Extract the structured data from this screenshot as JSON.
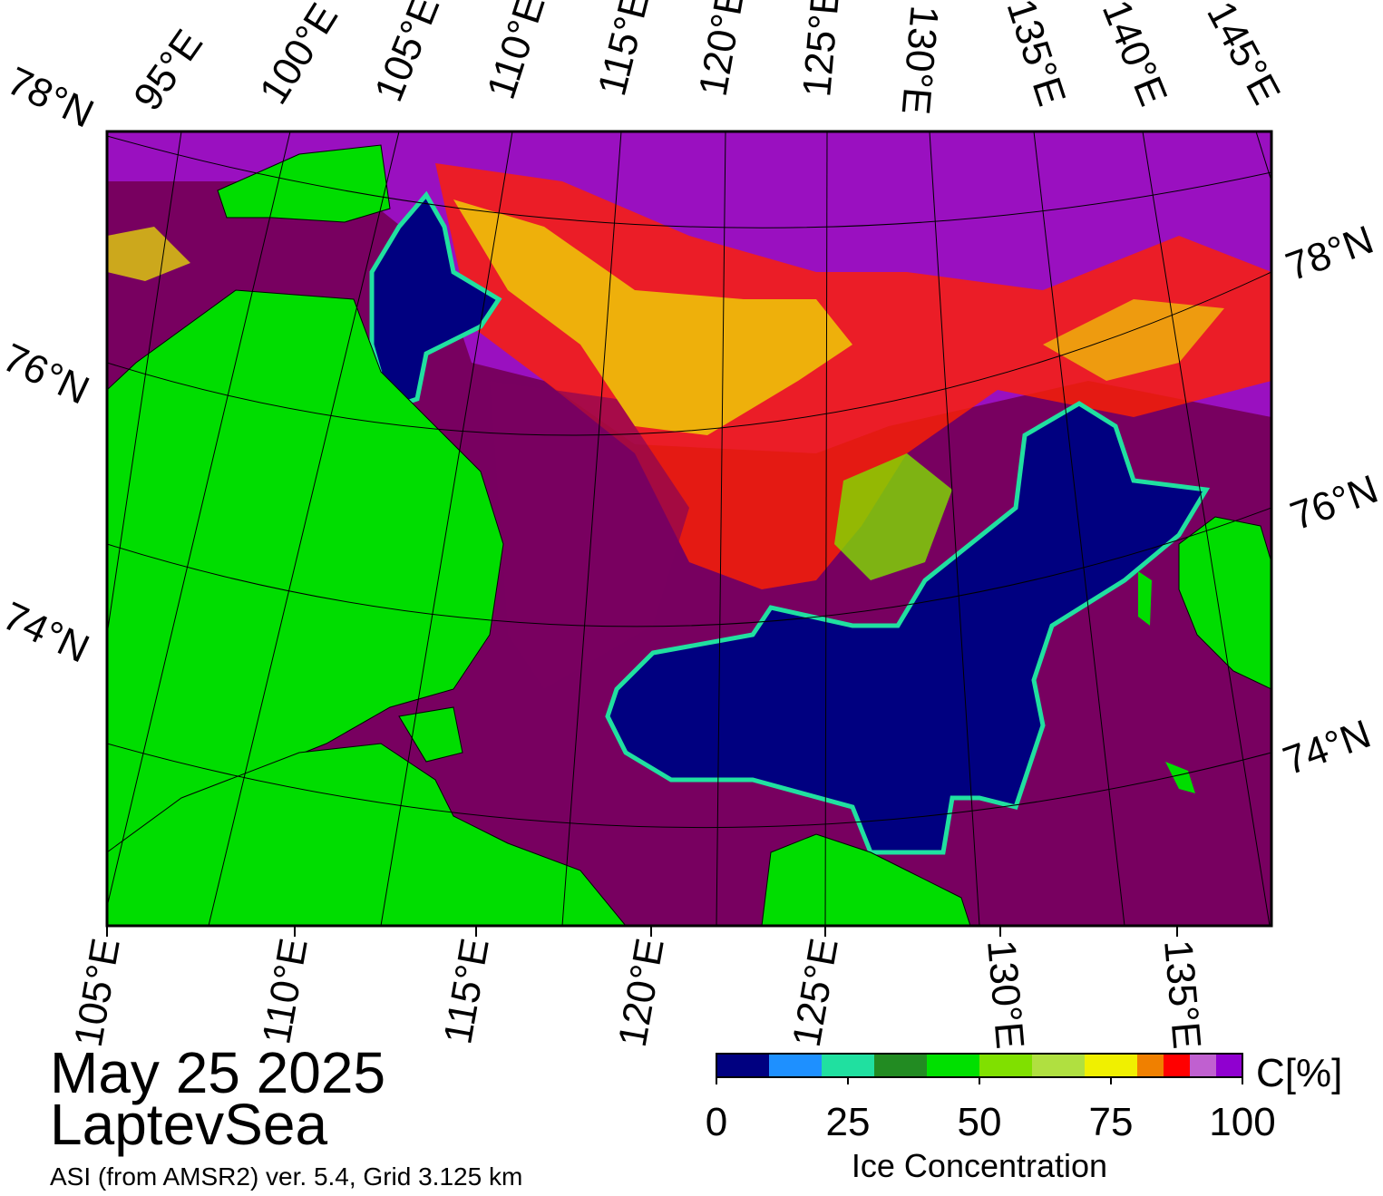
{
  "header": {
    "date": "May 25 2025",
    "region": "LaptevSea",
    "source": "ASI (from AMSR2) ver. 5.4,  Grid 3.125 km"
  },
  "map": {
    "top_labels": [
      "95°E",
      "100°E",
      "105°E",
      "110°E",
      "115°E",
      "120°E",
      "125°E",
      "130°E",
      "135°E",
      "140°E",
      "145°E"
    ],
    "left_labels": [
      "78°N",
      "76°N",
      "74°N"
    ],
    "right_labels": [
      "78°N",
      "76°N",
      "74°N"
    ],
    "bottom_labels": [
      "105°E",
      "110°E",
      "115°E",
      "120°E",
      "125°E",
      "130°E",
      "135°E"
    ]
  },
  "colorbar": {
    "title": "Ice Concentration",
    "unit": "C[%]",
    "range": [
      0,
      100
    ],
    "bins": [
      0,
      10,
      20,
      30,
      40,
      50,
      60,
      70,
      80,
      85,
      90,
      95,
      100
    ],
    "colors": [
      "#000080",
      "#1e90ff",
      "#20e0a0",
      "#228b22",
      "#00e000",
      "#80e000",
      "#b0e040",
      "#f0f000",
      "#f08000",
      "#ff0000",
      "#c060d0",
      "#9000d0"
    ],
    "ticks": [
      0,
      25,
      50,
      75,
      100
    ]
  }
}
